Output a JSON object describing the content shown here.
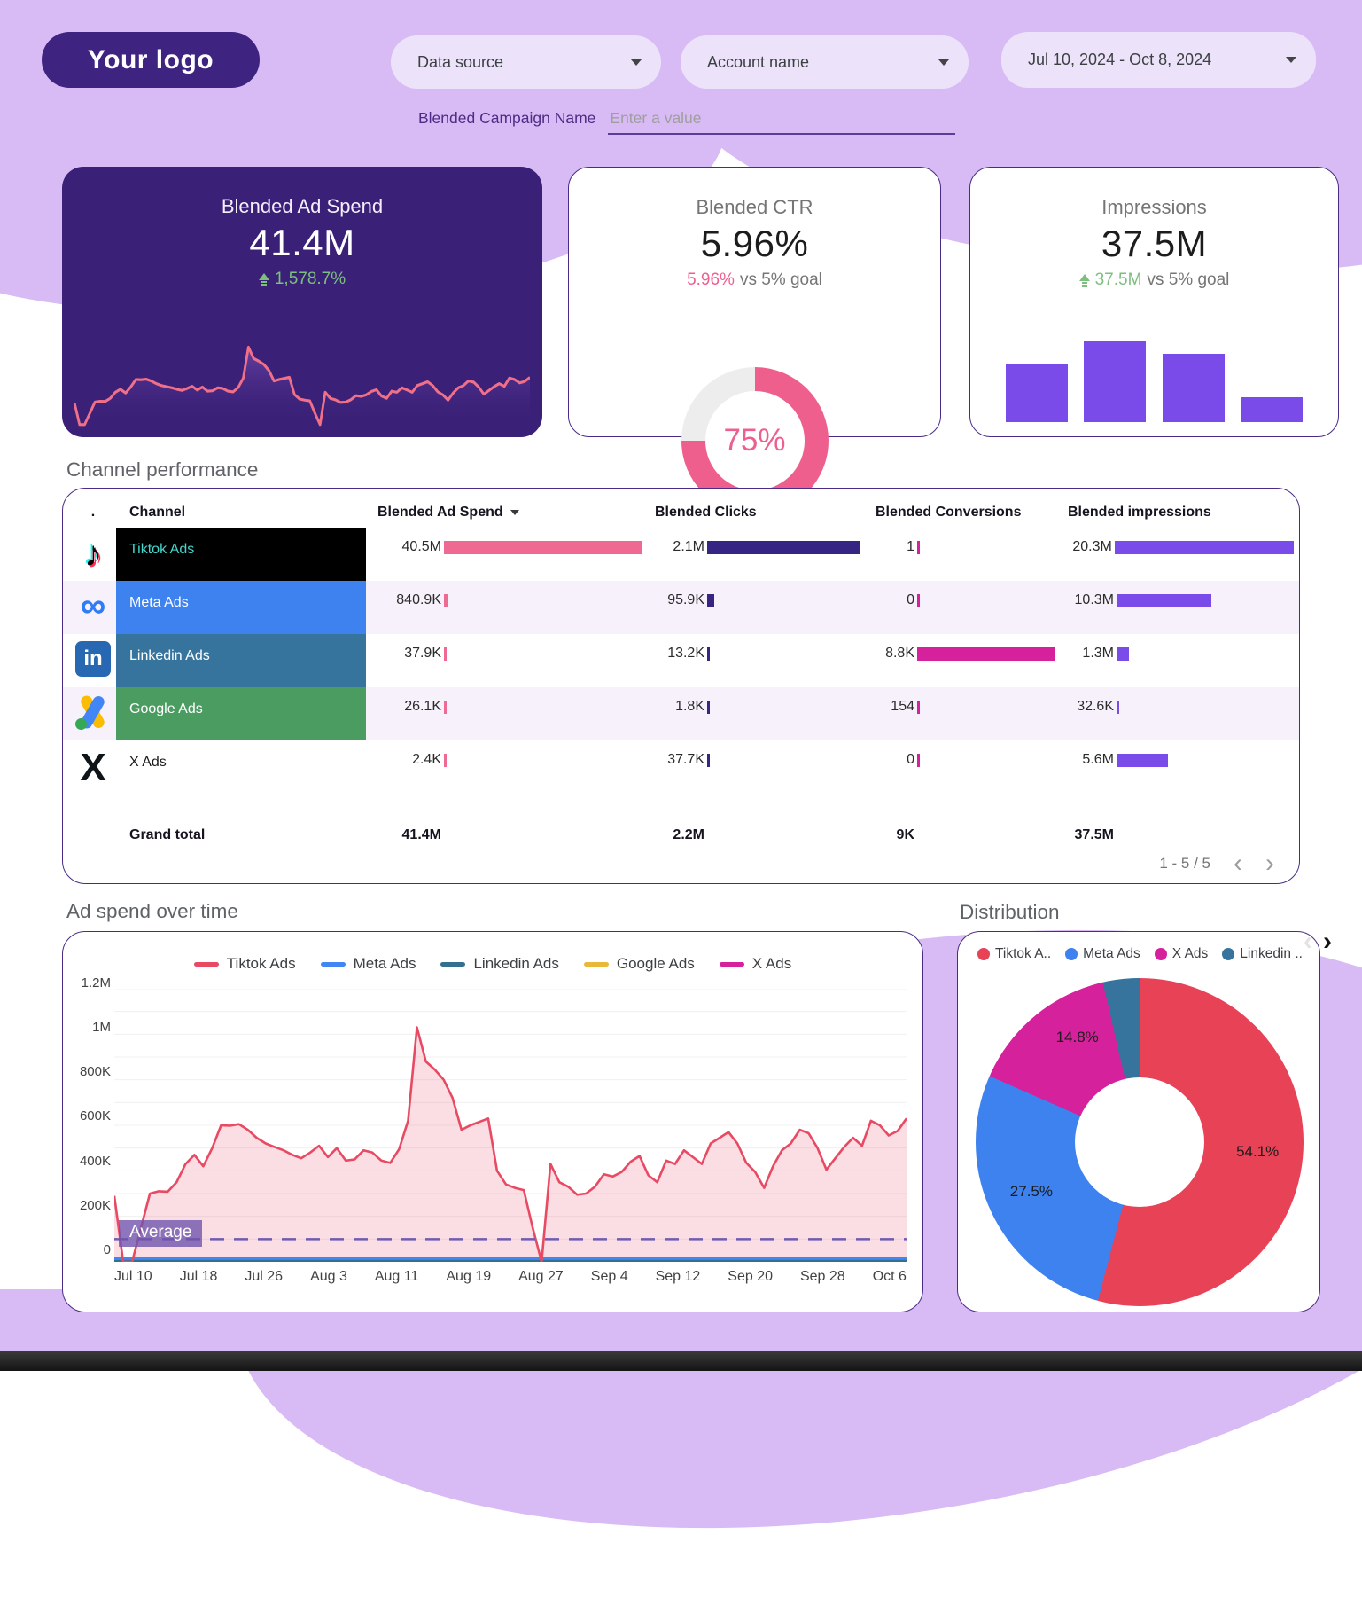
{
  "header": {
    "logo": "Your logo",
    "data_source": "Data source",
    "account_name": "Account name",
    "date_range": "Jul 10, 2024 - Oct 8, 2024",
    "campaign_label": "Blended Campaign Name",
    "campaign_placeholder": "Enter a value"
  },
  "sections": {
    "performance_title": "Channel performance",
    "timeseries_title": "Ad spend over time",
    "distribution_title": "Distribution"
  },
  "scorecards": {
    "ad_spend": {
      "title": "Blended Ad Spend",
      "value": "41.4M",
      "delta": "1,578.7%"
    },
    "ctr": {
      "title": "Blended CTR",
      "value": "5.96%",
      "vs_value": "5.96%",
      "vs_text": "vs 5% goal",
      "gauge_percent": 75,
      "gauge_label": "75%"
    },
    "impressions": {
      "title": "Impressions",
      "value": "37.5M",
      "vs_value": "37.5M",
      "vs_text": "vs 5% goal"
    }
  },
  "table": {
    "columns": {
      "index": ".",
      "channel": "Channel",
      "spend": "Blended Ad Spend",
      "clicks": "Blended Clicks",
      "conversions": "Blended Conversions",
      "impressions": "Blended impressions"
    },
    "bar_colors": {
      "spend": "#ee6a92",
      "clicks": "#372584",
      "conversions": "#d6219c",
      "impressions": "#7a4be8"
    },
    "rows": [
      {
        "channel": "Tiktok Ads",
        "icon": "tiktok",
        "row_bg": "#000000",
        "channel_color": "#45d6cc",
        "spend": {
          "label": "40.5M",
          "value": 40500000
        },
        "clicks": {
          "label": "2.1M",
          "value": 2100000
        },
        "conversions": {
          "label": "1",
          "value": 1
        },
        "impressions": {
          "label": "20.3M",
          "value": 20300000
        }
      },
      {
        "channel": "Meta Ads",
        "icon": "meta",
        "row_bg": "#3d82ef",
        "channel_color": "#ffffff",
        "spend": {
          "label": "840.9K",
          "value": 840900
        },
        "clicks": {
          "label": "95.9K",
          "value": 95900
        },
        "conversions": {
          "label": "0",
          "value": 0
        },
        "impressions": {
          "label": "10.3M",
          "value": 10300000
        }
      },
      {
        "channel": "Linkedin Ads",
        "icon": "linkedin",
        "row_bg": "#36749d",
        "channel_color": "#ffffff",
        "spend": {
          "label": "37.9K",
          "value": 37900
        },
        "clicks": {
          "label": "13.2K",
          "value": 13200
        },
        "conversions": {
          "label": "8.8K",
          "value": 8800
        },
        "impressions": {
          "label": "1.3M",
          "value": 1300000
        }
      },
      {
        "channel": "Google Ads",
        "icon": "google",
        "row_bg": "#4a9c61",
        "channel_color": "#ffffff",
        "spend": {
          "label": "26.1K",
          "value": 26100
        },
        "clicks": {
          "label": "1.8K",
          "value": 1800
        },
        "conversions": {
          "label": "154",
          "value": 154
        },
        "impressions": {
          "label": "32.6K",
          "value": 32600
        }
      },
      {
        "channel": "X Ads",
        "icon": "x",
        "row_bg": "transparent",
        "channel_color": "#1a1a1a",
        "spend": {
          "label": "2.4K",
          "value": 2400
        },
        "clicks": {
          "label": "37.7K",
          "value": 37700
        },
        "conversions": {
          "label": "0",
          "value": 0
        },
        "impressions": {
          "label": "5.6M",
          "value": 5600000
        }
      }
    ],
    "grand_total": {
      "label": "Grand total",
      "spend": "41.4M",
      "clicks": "2.2M",
      "conversions": "9K",
      "impressions": "37.5M"
    },
    "pagination": "1 - 5 / 5"
  },
  "chart_data": [
    {
      "id": "ad_spend_over_time",
      "type": "area",
      "title": "Ad spend over time",
      "x_tick_labels": [
        "Jul 10",
        "Jul 18",
        "Jul 26",
        "Aug 3",
        "Aug 11",
        "Aug 19",
        "Aug 27",
        "Sep 4",
        "Sep 12",
        "Sep 20",
        "Sep 28",
        "Oct 6"
      ],
      "y_tick_labels": [
        "1.2M",
        "1M",
        "800K",
        "600K",
        "400K",
        "200K",
        "0"
      ],
      "ylim": [
        0,
        1200000
      ],
      "grid": true,
      "legend_position": "top",
      "average_line": {
        "label": "Average",
        "value_k": 100
      },
      "series": [
        {
          "name": "Tiktok Ads",
          "color": "#e84963",
          "values_k": [
            290,
            0,
            0,
            150,
            300,
            310,
            308,
            350,
            430,
            470,
            420,
            500,
            600,
            598,
            605,
            580,
            545,
            520,
            505,
            490,
            470,
            455,
            480,
            510,
            460,
            500,
            445,
            450,
            490,
            480,
            445,
            435,
            495,
            620,
            1030,
            880,
            845,
            800,
            720,
            580,
            600,
            615,
            630,
            400,
            340,
            325,
            315,
            150,
            0,
            430,
            350,
            330,
            295,
            300,
            330,
            385,
            375,
            395,
            440,
            465,
            380,
            350,
            445,
            430,
            490,
            460,
            430,
            520,
            545,
            570,
            520,
            435,
            395,
            325,
            420,
            490,
            520,
            580,
            565,
            500,
            405,
            455,
            505,
            545,
            510,
            620,
            600,
            555,
            575,
            630
          ]
        },
        {
          "name": "Meta Ads",
          "color": "#4285f4",
          "values_k": 14
        },
        {
          "name": "Linkedin Ads",
          "color": "#33708f",
          "values_k": 2
        },
        {
          "name": "Google Ads",
          "color": "#eab838",
          "values_k": 2
        },
        {
          "name": "X Ads",
          "color": "#d6219c",
          "values_k": 6
        }
      ]
    },
    {
      "id": "distribution",
      "type": "pie",
      "title": "Distribution",
      "legend": [
        {
          "label": "Tiktok A..",
          "color": "#e84257"
        },
        {
          "label": "Meta Ads",
          "color": "#3d82ef"
        },
        {
          "label": "X Ads",
          "color": "#d6219c"
        },
        {
          "label": "Linkedin ..",
          "color": "#36749d"
        }
      ],
      "slices": [
        {
          "name": "Tiktok Ads",
          "percent": 54.1,
          "label": "54.1%",
          "color": "#e84257",
          "label_pos": {
            "x": 86,
            "y": 53
          }
        },
        {
          "name": "Meta Ads",
          "percent": 27.5,
          "label": "27.5%",
          "color": "#3d82ef",
          "label_pos": {
            "x": 17,
            "y": 65
          }
        },
        {
          "name": "X Ads",
          "percent": 14.8,
          "label": "14.8%",
          "color": "#d6219c",
          "label_pos": {
            "x": 31,
            "y": 18
          }
        },
        {
          "name": "Linkedin Ads",
          "percent": 3.6,
          "label": "",
          "color": "#36749d",
          "label_pos": {
            "x": 44,
            "y": 6
          }
        }
      ]
    },
    {
      "id": "impressions_by_channel",
      "type": "bar",
      "values_relative": [
        65,
        92,
        77,
        28
      ],
      "bar_color": "#7a4be8"
    }
  ],
  "colors": {
    "background_accent": "#d8bbf4",
    "brand_dark_purple": "#3a2077",
    "card_border": "#4a2c86",
    "pink": "#ee5f8d",
    "green_positive": "#7cbf7e",
    "impressions_purple": "#7a4be8"
  }
}
